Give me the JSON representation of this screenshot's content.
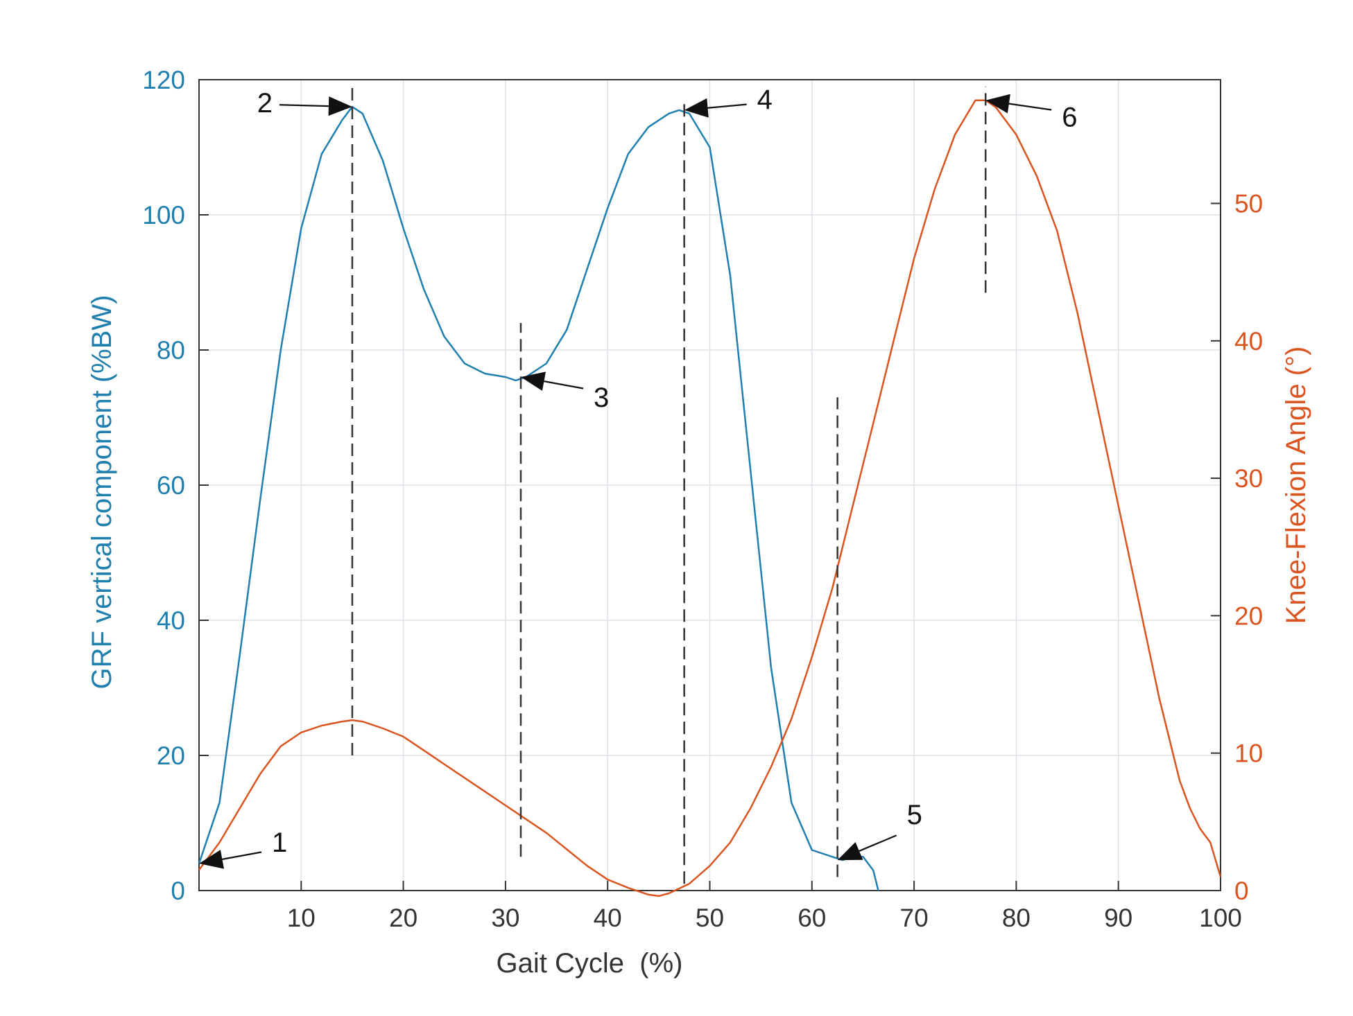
{
  "chart_data": {
    "type": "line",
    "title": "",
    "xlabel": "Gait Cycle  (%)",
    "ylabel_left": "GRF vertical component (%BW)",
    "ylabel_right": "Knee-Flexion Angle (°)",
    "xlim": [
      0,
      100
    ],
    "ylim_left": [
      0,
      120
    ],
    "ylim_right": [
      0,
      59
    ],
    "grid": true,
    "x_ticks": [
      10,
      20,
      30,
      40,
      50,
      60,
      70,
      80,
      90,
      100
    ],
    "y_left_ticks": [
      0,
      20,
      40,
      60,
      80,
      100,
      120
    ],
    "y_right_ticks": [
      0,
      10,
      20,
      30,
      40,
      50
    ],
    "colors": {
      "grf": "#1f7fae",
      "knee": "#d9541f",
      "axis_text": "#333333",
      "grid": "#dde3e8"
    },
    "series": [
      {
        "name": "GRF vertical component",
        "axis": "left",
        "x": [
          0,
          2,
          4,
          6,
          8,
          10,
          12,
          14,
          15,
          16,
          18,
          20,
          22,
          24,
          26,
          28,
          30,
          31,
          32,
          34,
          36,
          38,
          40,
          42,
          44,
          46,
          47,
          48,
          50,
          52,
          54,
          56,
          58,
          60,
          62,
          63,
          64,
          65,
          66,
          66.5
        ],
        "values": [
          4,
          13,
          35,
          58,
          80,
          98,
          109,
          114,
          116,
          115,
          108,
          98,
          89,
          82,
          78,
          76.5,
          76,
          75.5,
          76,
          78,
          83,
          92,
          101,
          109,
          113,
          115,
          115.5,
          115,
          110,
          91,
          62,
          33,
          13,
          6,
          5,
          4.5,
          5,
          5,
          3,
          0
        ]
      },
      {
        "name": "Knee-Flexion Angle",
        "axis": "right",
        "x": [
          0,
          2,
          4,
          6,
          8,
          10,
          12,
          14,
          15,
          16,
          18,
          20,
          22,
          24,
          26,
          28,
          30,
          32,
          34,
          36,
          38,
          40,
          42,
          44,
          45,
          46,
          48,
          50,
          52,
          54,
          56,
          58,
          60,
          62,
          64,
          66,
          68,
          70,
          72,
          74,
          76,
          77,
          78,
          80,
          82,
          84,
          86,
          88,
          90,
          92,
          94,
          96,
          97,
          98,
          99,
          100
        ],
        "values": [
          1.5,
          3.5,
          6,
          8.5,
          10.5,
          11.5,
          12,
          12.3,
          12.4,
          12.3,
          11.8,
          11.2,
          10.2,
          9.2,
          8.2,
          7.2,
          6.2,
          5.2,
          4.2,
          3,
          1.8,
          0.8,
          0.2,
          -0.3,
          -0.4,
          -0.2,
          0.5,
          1.8,
          3.5,
          6,
          9,
          12.5,
          17,
          22,
          28,
          34,
          40,
          46,
          51,
          55,
          57.5,
          57.5,
          57,
          55,
          52,
          48,
          42,
          35,
          28,
          21,
          14,
          8,
          6,
          4.5,
          3.5,
          1
        ]
      }
    ],
    "annotations": [
      {
        "label": "1",
        "x": 0,
        "y_left": 4
      },
      {
        "label": "2",
        "x": 15,
        "y_left": 116,
        "line_from_left": 20,
        "line_to_left": 119
      },
      {
        "label": "3",
        "x": 31.5,
        "y_left": 76,
        "line_from_left": 5,
        "line_to_left": 84
      },
      {
        "label": "4",
        "x": 47.5,
        "y_left": 115.5,
        "line_from_left": 1,
        "line_to_left": 117
      },
      {
        "label": "5",
        "x": 62.5,
        "y_left": 4.5,
        "line_from_left": 2,
        "line_to_left": 73
      },
      {
        "label": "6",
        "x": 77,
        "y_right": 57.5,
        "line_from_right": 43.5,
        "line_to_right": 58.5
      }
    ]
  }
}
